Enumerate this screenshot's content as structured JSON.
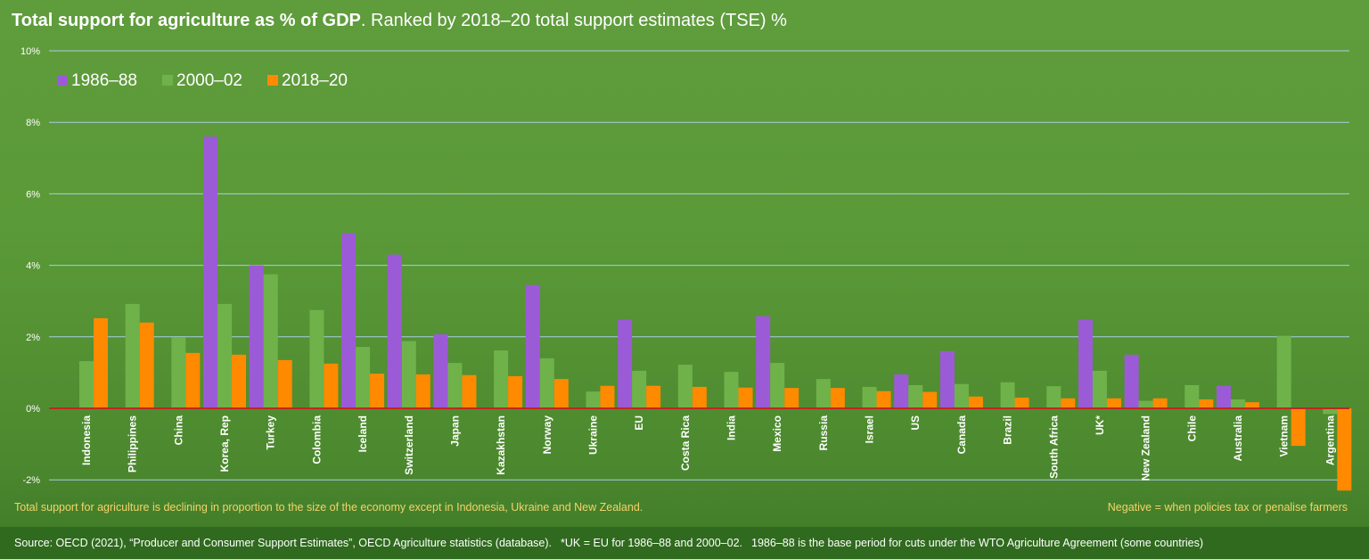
{
  "header": {
    "title_bold": "Total support for agriculture as % of GDP",
    "title_rest": ". Ranked by 2018–20 total support estimates (TSE) %"
  },
  "notes": {
    "left": "Total support for agriculture is declining in proportion to the size of the economy except in Indonesia, Ukraine and New Zealand.",
    "right": "Negative = when policies tax or penalise farmers"
  },
  "source": {
    "text": "Source: OECD (2021), “Producer and Consumer Support Estimates”, OECD Agriculture statistics (database).",
    "uk_note": "*UK = EU for 1986–88 and 2000–02.",
    "base_note": "1986–88 is the base period for cuts under the WTO Agriculture Agreement (some countries)"
  },
  "colors": {
    "s1986": "#9c5bd6",
    "s2000": "#6fb24a",
    "s2018": "#ff8a00",
    "grid": "#a9cde6",
    "zero": "#c0281e",
    "label": "#ffffff"
  },
  "chart_data": {
    "type": "bar",
    "title": "Total support for agriculture as % of GDP. Ranked by 2018–20 total support estimates (TSE) %",
    "xlabel": "",
    "ylabel": "",
    "ylim": [
      -2,
      10
    ],
    "yticks": [
      -2,
      0,
      2,
      4,
      6,
      8,
      10
    ],
    "ytick_labels": [
      "-2%",
      "0%",
      "2%",
      "4%",
      "6%",
      "8%",
      "10%"
    ],
    "legend_position": "top-left",
    "categories": [
      "Indonesia",
      "Philippines",
      "China",
      "Korea, Rep",
      "Turkey",
      "Colombia",
      "Iceland",
      "Switzerland",
      "Japan",
      "Kazakhstan",
      "Norway",
      "Ukraine",
      "EU",
      "Costa Rica",
      "India",
      "Mexico",
      "Russia",
      "Israel",
      "US",
      "Canada",
      "Brazil",
      "South Africa",
      "UK*",
      "New Zealand",
      "Chile",
      "Australia",
      "Vietnam",
      "Argentina"
    ],
    "series": [
      {
        "name": "1986–88",
        "key": "s1986",
        "values": [
          null,
          null,
          null,
          7.6,
          4.0,
          null,
          4.9,
          4.3,
          2.07,
          null,
          3.45,
          null,
          2.48,
          null,
          null,
          2.58,
          null,
          null,
          0.95,
          1.6,
          null,
          null,
          2.48,
          1.5,
          null,
          0.63,
          null,
          null
        ]
      },
      {
        "name": "2000–02",
        "key": "s2000",
        "values": [
          1.32,
          2.92,
          1.98,
          2.92,
          3.75,
          2.75,
          1.72,
          1.88,
          1.27,
          1.62,
          1.4,
          0.47,
          1.05,
          1.22,
          1.02,
          1.27,
          0.82,
          0.6,
          0.65,
          0.68,
          0.73,
          0.62,
          1.05,
          0.21,
          0.65,
          0.25,
          2.03,
          -0.16
        ]
      },
      {
        "name": "2018–20",
        "key": "s2018",
        "values": [
          2.52,
          2.4,
          1.55,
          1.5,
          1.35,
          1.25,
          0.97,
          0.95,
          0.93,
          0.9,
          0.82,
          0.63,
          0.63,
          0.6,
          0.58,
          0.57,
          0.57,
          0.48,
          0.46,
          0.33,
          0.3,
          0.28,
          0.28,
          0.28,
          0.25,
          0.17,
          -1.05,
          -2.3
        ]
      }
    ]
  }
}
